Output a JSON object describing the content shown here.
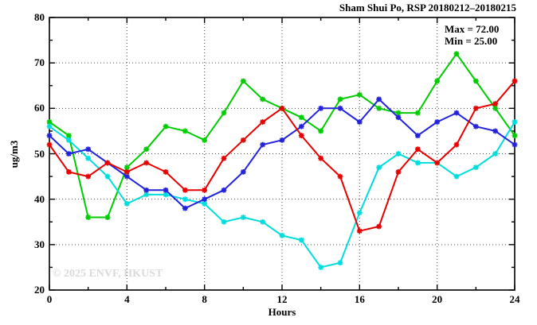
{
  "title": "Sham Shui Po, RSP 20180212–20180215",
  "annotation": {
    "max_label": "Max = 72.00",
    "min_label": "Min = 25.00"
  },
  "watermark": "© 2025 ENVF, HKUST",
  "axes": {
    "x_label": "Hours",
    "y_label": "ug/m3"
  },
  "chart_data": {
    "type": "line",
    "title": "Sham Shui Po, RSP 20180212–20180215",
    "xlabel": "Hours",
    "ylabel": "ug/m3",
    "xlim": [
      0,
      24
    ],
    "ylim": [
      20,
      80
    ],
    "x_major_ticks": [
      0,
      4,
      8,
      12,
      16,
      20,
      24
    ],
    "x_minor_step": 2,
    "y_major_ticks": [
      20,
      30,
      40,
      50,
      60,
      70,
      80
    ],
    "y_minor_step": 5,
    "grid": true,
    "legend": "none",
    "stats": {
      "max": 72.0,
      "min": 25.0
    },
    "x": [
      0,
      1,
      2,
      3,
      4,
      5,
      6,
      7,
      8,
      9,
      10,
      11,
      12,
      13,
      14,
      15,
      16,
      17,
      18,
      19,
      20,
      21,
      22,
      23,
      24
    ],
    "series": [
      {
        "name": "green",
        "color": "#00cc00",
        "values": [
          57,
          54,
          36,
          36,
          47,
          51,
          56,
          55,
          53,
          59,
          66,
          62,
          60,
          58,
          55,
          62,
          63,
          60,
          59,
          59,
          66,
          72,
          66,
          60,
          54
        ]
      },
      {
        "name": "cyan",
        "color": "#00dddd",
        "values": [
          56,
          53,
          49,
          45,
          39,
          41,
          41,
          40,
          39,
          35,
          36,
          35,
          32,
          31,
          25,
          26,
          37,
          47,
          50,
          48,
          48,
          45,
          47,
          50,
          57
        ]
      },
      {
        "name": "blue",
        "color": "#2222dd",
        "values": [
          54,
          50,
          51,
          48,
          45,
          42,
          42,
          38,
          40,
          42,
          46,
          52,
          53,
          56,
          60,
          60,
          57,
          62,
          58,
          54,
          57,
          59,
          56,
          55,
          52
        ]
      },
      {
        "name": "red",
        "color": "#e60000",
        "values": [
          52,
          46,
          45,
          48,
          46,
          48,
          46,
          42,
          42,
          49,
          53,
          57,
          60,
          54,
          49,
          45,
          33,
          34,
          46,
          51,
          48,
          52,
          60,
          61,
          66
        ]
      }
    ]
  },
  "style": {
    "frame_color": "#000000",
    "grid_color": "#444444",
    "text_color": "#000000",
    "watermark_color": "#dadada"
  }
}
